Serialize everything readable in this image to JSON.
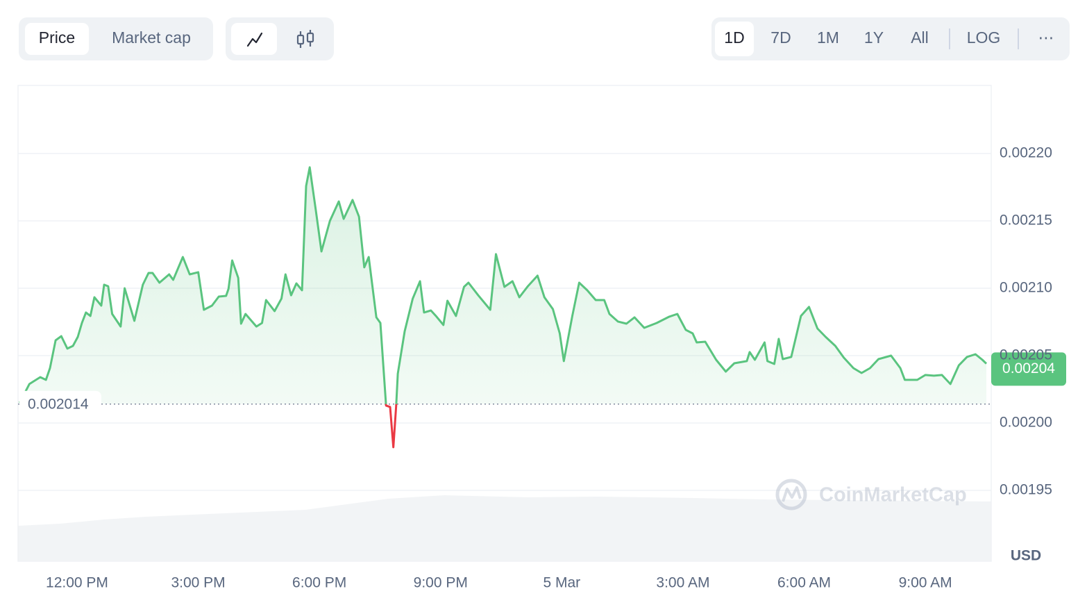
{
  "controls": {
    "metric_tabs": [
      "Price",
      "Market cap"
    ],
    "active_metric": 0,
    "ranges": [
      "1D",
      "7D",
      "1M",
      "1Y",
      "All"
    ],
    "active_range": 0,
    "scale_toggle": "LOG",
    "more": "⋯"
  },
  "chart_data": {
    "type": "line",
    "x": [
      10.58,
      10.82,
      11.09,
      11.23,
      11.33,
      11.47,
      11.61,
      11.76,
      11.9,
      12.02,
      12.12,
      12.22,
      12.33,
      12.43,
      12.6,
      12.67,
      12.77,
      12.87,
      13.08,
      13.18,
      13.42,
      13.63,
      13.77,
      13.87,
      14.04,
      14.28,
      14.38,
      14.62,
      14.79,
      15,
      15.14,
      15.34,
      15.51,
      15.69,
      15.75,
      15.84,
      15.99,
      16.06,
      16.17,
      16.44,
      16.58,
      16.68,
      16.89,
      17.06,
      17.16,
      17.3,
      17.43,
      17.57,
      17.67,
      17.76,
      17.91,
      18.05,
      18.26,
      18.48,
      18.6,
      18.82,
      18.98,
      19.11,
      19.22,
      19.41,
      19.51,
      19.65,
      19.75,
      19.83,
      19.9,
      19.94,
      20.11,
      20.31,
      20.49,
      20.59,
      20.76,
      20.9,
      21.07,
      21.17,
      21.38,
      21.58,
      21.69,
      21.93,
      22.23,
      22.37,
      22.58,
      22.78,
      22.95,
      23.16,
      23.4,
      23.57,
      23.78,
      23.95,
      24.05,
      24.26,
      24.43,
      24.63,
      24.84,
      25.05,
      25.18,
      25.39,
      25.6,
      25.8,
      26.04,
      26.35,
      26.66,
      26.86,
      27.07,
      27.24,
      27.34,
      27.55,
      27.82,
      28.06,
      28.27,
      28.58,
      28.65,
      28.78,
      29.02,
      29.09,
      29.26,
      29.37,
      29.47,
      29.68,
      29.92,
      30.12,
      30.33,
      30.53,
      30.77,
      30.98,
      31.22,
      31.42,
      31.63,
      31.84,
      32.15,
      32.38,
      32.49,
      32.8,
      33,
      33.21,
      33.41,
      33.62,
      33.83,
      34.03,
      34.24,
      34.41,
      34.51
    ],
    "values": [
      0.0020149,
      0.0020289,
      0.002034,
      0.002032,
      0.0020407,
      0.0020613,
      0.0020644,
      0.0020552,
      0.0020572,
      0.0020639,
      0.0020742,
      0.002082,
      0.0020794,
      0.0020933,
      0.0020871,
      0.0021026,
      0.0021015,
      0.0020809,
      0.0020716,
      0.0021,
      0.0020758,
      0.0021026,
      0.0021113,
      0.0021113,
      0.0021041,
      0.0021103,
      0.0021062,
      0.0021232,
      0.0021103,
      0.0021119,
      0.002084,
      0.0020871,
      0.0020938,
      0.0020943,
      0.0020995,
      0.0021206,
      0.0021077,
      0.0020737,
      0.0020809,
      0.0020716,
      0.0020742,
      0.0020912,
      0.002083,
      0.0020923,
      0.0021103,
      0.0020948,
      0.0021036,
      0.0020985,
      0.0021758,
      0.0021897,
      0.0021582,
      0.0021273,
      0.00215,
      0.0021644,
      0.0021515,
      0.0021655,
      0.0021531,
      0.0021155,
      0.0021232,
      0.0020784,
      0.0020742,
      0.0020129,
      0.0020119,
      0.001982,
      0.0020124,
      0.0020366,
      0.002068,
      0.0020923,
      0.0021052,
      0.002082,
      0.0020835,
      0.0020789,
      0.0020727,
      0.0020907,
      0.0020794,
      0.002101,
      0.0021041,
      0.0020948,
      0.002084,
      0.0021253,
      0.002101,
      0.0021052,
      0.0020933,
      0.0021015,
      0.0021093,
      0.0020933,
      0.0020845,
      0.0020665,
      0.0020459,
      0.0020794,
      0.0021041,
      0.0020985,
      0.0020912,
      0.0020912,
      0.0020809,
      0.0020753,
      0.0020737,
      0.0020784,
      0.0020706,
      0.0020742,
      0.0020789,
      0.0020809,
      0.0020691,
      0.0020665,
      0.0020598,
      0.0020603,
      0.0020469,
      0.0020381,
      0.0020443,
      0.0020459,
      0.0020526,
      0.0020469,
      0.0020598,
      0.0020459,
      0.0020438,
      0.0020624,
      0.0020474,
      0.002049,
      0.0020794,
      0.0020861,
      0.0020701,
      0.0020639,
      0.0020572,
      0.0020485,
      0.0020407,
      0.0020371,
      0.0020407,
      0.0020474,
      0.00205,
      0.0020407,
      0.002032,
      0.002032,
      0.0020356,
      0.0020351,
      0.0020356,
      0.0020289,
      0.0020428,
      0.002049,
      0.002051,
      0.0020469,
      0.002044
    ],
    "color": "#5ac47f",
    "below_color": "#ea3943",
    "reference_value": 0.002014,
    "last_price": 0.00204,
    "xlim": [
      10.54,
      34.63
    ],
    "xticks": [
      {
        "value": 12,
        "label": "12:00 PM"
      },
      {
        "value": 15,
        "label": "3:00 PM"
      },
      {
        "value": 18,
        "label": "6:00 PM"
      },
      {
        "value": 21,
        "label": "9:00 PM"
      },
      {
        "value": 24,
        "label": "5 Mar"
      },
      {
        "value": 27,
        "label": "3:00 AM"
      },
      {
        "value": 30,
        "label": "6:00 AM"
      },
      {
        "value": 33,
        "label": "9:00 AM"
      }
    ],
    "ylim": [
      0.0018974,
      0.0022505
    ],
    "yticks": [
      {
        "value": 0.00195,
        "label": "0.00195"
      },
      {
        "value": 0.002,
        "label": "0.00200"
      },
      {
        "value": 0.00205,
        "label": "0.00205"
      },
      {
        "value": 0.0021,
        "label": "0.00210"
      },
      {
        "value": 0.00215,
        "label": "0.00215"
      },
      {
        "value": 0.0022,
        "label": "0.00220"
      }
    ],
    "grid": true,
    "y_unit": "USD",
    "watermark": "CoinMarketCap"
  }
}
